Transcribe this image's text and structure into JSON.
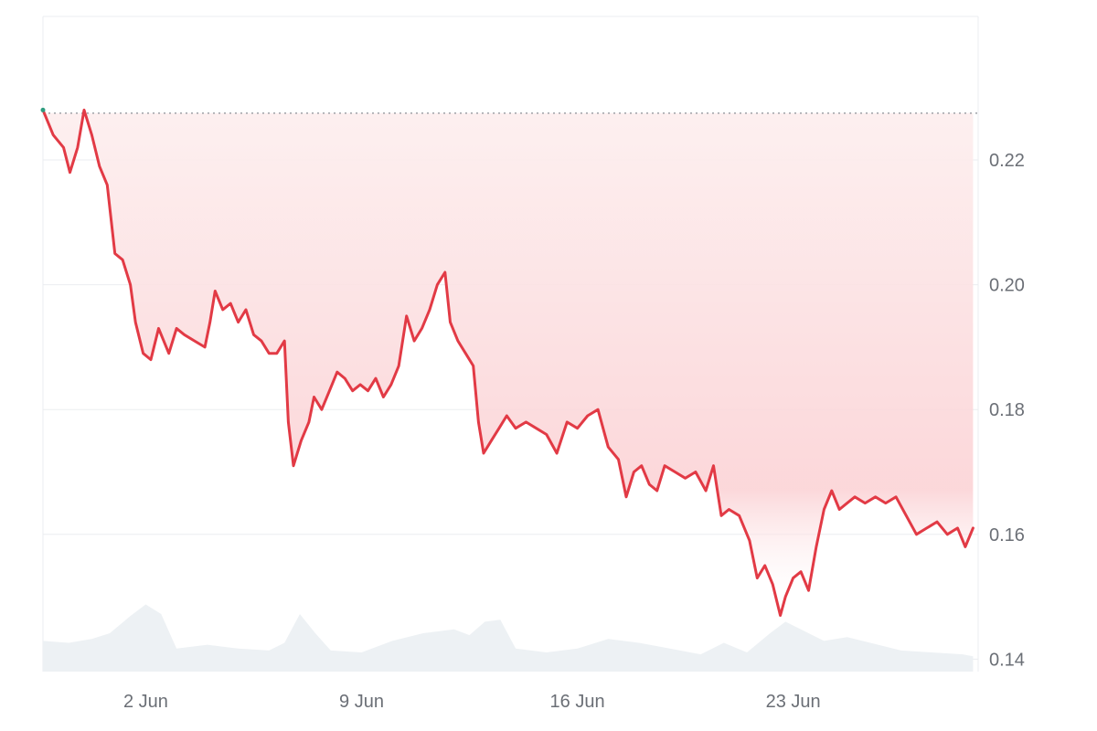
{
  "chart_data": {
    "type": "area",
    "title": "",
    "xlabel": "",
    "ylabel": "",
    "x_ticks": [
      {
        "date": "2026-06-02",
        "label": "2 Jun"
      },
      {
        "date": "2026-06-09",
        "label": "9 Jun"
      },
      {
        "date": "2026-06-16",
        "label": "16 Jun"
      },
      {
        "date": "2026-06-23",
        "label": "23 Jun"
      }
    ],
    "y_ticks": [
      0.14,
      0.16,
      0.18,
      0.2,
      0.22
    ],
    "xlim": [
      "2026-05-29T16:00",
      "2026-06-29T00:00"
    ],
    "ylim": [
      0.138,
      0.243
    ],
    "reference_line": 0.2275,
    "grid": "horizontal",
    "colors": {
      "line": "#e23a45",
      "start_marker": "#2e9c7f",
      "area_fill": "#fbd5d8",
      "volume_fill": "#edf1f4",
      "gridline": "#ebedf0",
      "tick_text": "#6b6f76"
    },
    "series": [
      {
        "values": [
          [
            "2026-05-29T16:00",
            0.228
          ],
          [
            "2026-05-30T00:00",
            0.224
          ],
          [
            "2026-05-30T08:00",
            0.222
          ],
          [
            "2026-05-30T13:00",
            0.218
          ],
          [
            "2026-05-30T19:00",
            0.222
          ],
          [
            "2026-05-31T00:00",
            0.228
          ],
          [
            "2026-05-31T06:00",
            0.224
          ],
          [
            "2026-05-31T12:00",
            0.219
          ],
          [
            "2026-05-31T18:00",
            0.216
          ],
          [
            "2026-06-01T00:00",
            0.205
          ],
          [
            "2026-06-01T06:00",
            0.204
          ],
          [
            "2026-06-01T12:00",
            0.2
          ],
          [
            "2026-06-01T16:00",
            0.194
          ],
          [
            "2026-06-01T22:00",
            0.189
          ],
          [
            "2026-06-02T04:00",
            0.188
          ],
          [
            "2026-06-02T10:00",
            0.193
          ],
          [
            "2026-06-02T18:00",
            0.189
          ],
          [
            "2026-06-03T00:00",
            0.193
          ],
          [
            "2026-06-03T06:00",
            0.192
          ],
          [
            "2026-06-03T14:00",
            0.191
          ],
          [
            "2026-06-03T22:00",
            0.19
          ],
          [
            "2026-06-04T02:00",
            0.194
          ],
          [
            "2026-06-04T06:00",
            0.199
          ],
          [
            "2026-06-04T12:00",
            0.196
          ],
          [
            "2026-06-04T18:00",
            0.197
          ],
          [
            "2026-06-05T00:00",
            0.194
          ],
          [
            "2026-06-05T06:00",
            0.196
          ],
          [
            "2026-06-05T12:00",
            0.192
          ],
          [
            "2026-06-05T18:00",
            0.191
          ],
          [
            "2026-06-06T00:00",
            0.189
          ],
          [
            "2026-06-06T06:00",
            0.189
          ],
          [
            "2026-06-06T12:00",
            0.191
          ],
          [
            "2026-06-06T15:00",
            0.178
          ],
          [
            "2026-06-06T19:00",
            0.171
          ],
          [
            "2026-06-07T01:00",
            0.175
          ],
          [
            "2026-06-07T07:00",
            0.178
          ],
          [
            "2026-06-07T11:00",
            0.182
          ],
          [
            "2026-06-07T17:00",
            0.18
          ],
          [
            "2026-06-07T23:00",
            0.183
          ],
          [
            "2026-06-08T05:00",
            0.186
          ],
          [
            "2026-06-08T11:00",
            0.185
          ],
          [
            "2026-06-08T17:00",
            0.183
          ],
          [
            "2026-06-08T23:00",
            0.184
          ],
          [
            "2026-06-09T05:00",
            0.183
          ],
          [
            "2026-06-09T11:00",
            0.185
          ],
          [
            "2026-06-09T17:00",
            0.182
          ],
          [
            "2026-06-09T23:00",
            0.184
          ],
          [
            "2026-06-10T05:00",
            0.187
          ],
          [
            "2026-06-10T11:00",
            0.195
          ],
          [
            "2026-06-10T17:00",
            0.191
          ],
          [
            "2026-06-10T23:00",
            0.193
          ],
          [
            "2026-06-11T05:00",
            0.196
          ],
          [
            "2026-06-11T11:00",
            0.2
          ],
          [
            "2026-06-11T17:00",
            0.202
          ],
          [
            "2026-06-11T21:00",
            0.194
          ],
          [
            "2026-06-12T03:00",
            0.191
          ],
          [
            "2026-06-12T09:00",
            0.189
          ],
          [
            "2026-06-12T15:00",
            0.187
          ],
          [
            "2026-06-12T19:00",
            0.178
          ],
          [
            "2026-06-12T23:00",
            0.173
          ],
          [
            "2026-06-13T05:00",
            0.175
          ],
          [
            "2026-06-13T11:00",
            0.177
          ],
          [
            "2026-06-13T17:00",
            0.179
          ],
          [
            "2026-06-14T00:00",
            0.177
          ],
          [
            "2026-06-14T08:00",
            0.178
          ],
          [
            "2026-06-14T16:00",
            0.177
          ],
          [
            "2026-06-15T00:00",
            0.176
          ],
          [
            "2026-06-15T08:00",
            0.173
          ],
          [
            "2026-06-15T16:00",
            0.178
          ],
          [
            "2026-06-16T00:00",
            0.177
          ],
          [
            "2026-06-16T08:00",
            0.179
          ],
          [
            "2026-06-16T16:00",
            0.18
          ],
          [
            "2026-06-17T00:00",
            0.174
          ],
          [
            "2026-06-17T08:00",
            0.172
          ],
          [
            "2026-06-17T14:00",
            0.166
          ],
          [
            "2026-06-17T20:00",
            0.17
          ],
          [
            "2026-06-18T02:00",
            0.171
          ],
          [
            "2026-06-18T08:00",
            0.168
          ],
          [
            "2026-06-18T14:00",
            0.167
          ],
          [
            "2026-06-18T20:00",
            0.171
          ],
          [
            "2026-06-19T04:00",
            0.17
          ],
          [
            "2026-06-19T12:00",
            0.169
          ],
          [
            "2026-06-19T20:00",
            0.17
          ],
          [
            "2026-06-20T04:00",
            0.167
          ],
          [
            "2026-06-20T10:00",
            0.171
          ],
          [
            "2026-06-20T16:00",
            0.163
          ],
          [
            "2026-06-20T22:00",
            0.164
          ],
          [
            "2026-06-21T06:00",
            0.163
          ],
          [
            "2026-06-21T14:00",
            0.159
          ],
          [
            "2026-06-21T20:00",
            0.153
          ],
          [
            "2026-06-22T02:00",
            0.155
          ],
          [
            "2026-06-22T08:00",
            0.152
          ],
          [
            "2026-06-22T14:00",
            0.147
          ],
          [
            "2026-06-22T18:00",
            0.15
          ],
          [
            "2026-06-23T00:00",
            0.153
          ],
          [
            "2026-06-23T06:00",
            0.154
          ],
          [
            "2026-06-23T12:00",
            0.151
          ],
          [
            "2026-06-23T18:00",
            0.158
          ],
          [
            "2026-06-24T00:00",
            0.164
          ],
          [
            "2026-06-24T06:00",
            0.167
          ],
          [
            "2026-06-24T12:00",
            0.164
          ],
          [
            "2026-06-24T18:00",
            0.165
          ],
          [
            "2026-06-25T00:00",
            0.166
          ],
          [
            "2026-06-25T08:00",
            0.165
          ],
          [
            "2026-06-25T16:00",
            0.166
          ],
          [
            "2026-06-26T00:00",
            0.165
          ],
          [
            "2026-06-26T08:00",
            0.166
          ],
          [
            "2026-06-26T16:00",
            0.163
          ],
          [
            "2026-06-27T00:00",
            0.16
          ],
          [
            "2026-06-27T08:00",
            0.161
          ],
          [
            "2026-06-27T16:00",
            0.162
          ],
          [
            "2026-06-28T00:00",
            0.16
          ],
          [
            "2026-06-28T08:00",
            0.161
          ],
          [
            "2026-06-28T14:00",
            0.158
          ],
          [
            "2026-06-28T20:00",
            0.161
          ]
        ]
      }
    ],
    "volume_relative": [
      [
        "2026-05-29T16:00",
        0.32
      ],
      [
        "2026-05-30T12:00",
        0.3
      ],
      [
        "2026-05-31T06:00",
        0.34
      ],
      [
        "2026-05-31T20:00",
        0.4
      ],
      [
        "2026-06-01T12:00",
        0.58
      ],
      [
        "2026-06-02T00:00",
        0.7
      ],
      [
        "2026-06-02T12:00",
        0.6
      ],
      [
        "2026-06-03T00:00",
        0.24
      ],
      [
        "2026-06-04T00:00",
        0.28
      ],
      [
        "2026-06-05T00:00",
        0.24
      ],
      [
        "2026-06-06T00:00",
        0.22
      ],
      [
        "2026-06-06T12:00",
        0.3
      ],
      [
        "2026-06-07T00:00",
        0.6
      ],
      [
        "2026-06-07T12:00",
        0.4
      ],
      [
        "2026-06-08T00:00",
        0.22
      ],
      [
        "2026-06-09T00:00",
        0.2
      ],
      [
        "2026-06-10T00:00",
        0.32
      ],
      [
        "2026-06-11T00:00",
        0.4
      ],
      [
        "2026-06-12T00:00",
        0.44
      ],
      [
        "2026-06-12T12:00",
        0.38
      ],
      [
        "2026-06-13T00:00",
        0.52
      ],
      [
        "2026-06-13T12:00",
        0.54
      ],
      [
        "2026-06-14T00:00",
        0.24
      ],
      [
        "2026-06-15T00:00",
        0.2
      ],
      [
        "2026-06-16T00:00",
        0.24
      ],
      [
        "2026-06-17T00:00",
        0.34
      ],
      [
        "2026-06-18T00:00",
        0.3
      ],
      [
        "2026-06-19T00:00",
        0.24
      ],
      [
        "2026-06-20T00:00",
        0.18
      ],
      [
        "2026-06-20T18:00",
        0.3
      ],
      [
        "2026-06-21T12:00",
        0.2
      ],
      [
        "2026-06-22T06:00",
        0.4
      ],
      [
        "2026-06-22T18:00",
        0.52
      ],
      [
        "2026-06-23T06:00",
        0.44
      ],
      [
        "2026-06-24T00:00",
        0.32
      ],
      [
        "2026-06-24T18:00",
        0.36
      ],
      [
        "2026-06-25T12:00",
        0.3
      ],
      [
        "2026-06-26T12:00",
        0.22
      ],
      [
        "2026-06-27T12:00",
        0.2
      ],
      [
        "2026-06-28T12:00",
        0.18
      ],
      [
        "2026-06-28T20:00",
        0.16
      ]
    ]
  }
}
